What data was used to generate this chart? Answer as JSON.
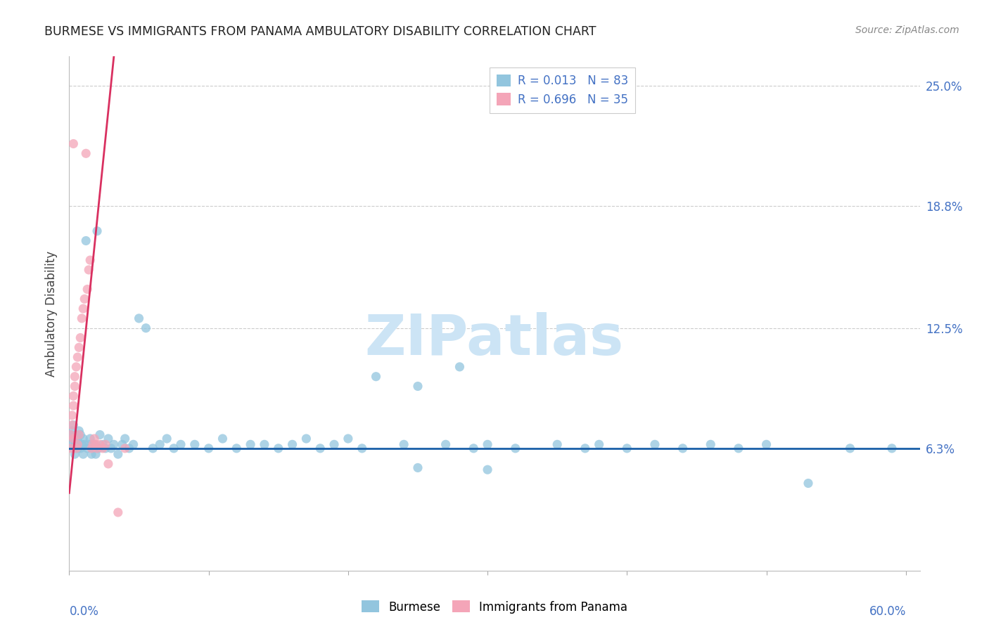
{
  "title": "BURMESE VS IMMIGRANTS FROM PANAMA AMBULATORY DISABILITY CORRELATION CHART",
  "source": "Source: ZipAtlas.com",
  "ylabel": "Ambulatory Disability",
  "ytick_vals": [
    0.063,
    0.125,
    0.188,
    0.25
  ],
  "ytick_labels": [
    "6.3%",
    "12.5%",
    "18.8%",
    "25.0%"
  ],
  "xlim": [
    0.0,
    0.61
  ],
  "ylim": [
    0.0,
    0.265
  ],
  "legend_line1": "R = 0.013   N = 83",
  "legend_line2": "R = 0.696   N = 35",
  "blue_color": "#92c5de",
  "pink_color": "#f4a5b8",
  "line_blue_color": "#1a5fa8",
  "line_pink_color": "#d93060",
  "watermark_color": "#cce4f5",
  "blue_x": [
    0.001,
    0.002,
    0.002,
    0.003,
    0.003,
    0.003,
    0.004,
    0.004,
    0.005,
    0.005,
    0.006,
    0.006,
    0.007,
    0.007,
    0.008,
    0.008,
    0.009,
    0.01,
    0.01,
    0.011,
    0.012,
    0.013,
    0.014,
    0.015,
    0.016,
    0.017,
    0.018,
    0.019,
    0.02,
    0.021,
    0.022,
    0.024,
    0.026,
    0.028,
    0.03,
    0.032,
    0.035,
    0.038,
    0.04,
    0.043,
    0.046,
    0.05,
    0.055,
    0.06,
    0.065,
    0.07,
    0.075,
    0.08,
    0.09,
    0.1,
    0.11,
    0.12,
    0.13,
    0.14,
    0.15,
    0.16,
    0.17,
    0.18,
    0.19,
    0.2,
    0.21,
    0.22,
    0.24,
    0.25,
    0.27,
    0.28,
    0.29,
    0.3,
    0.32,
    0.35,
    0.37,
    0.38,
    0.4,
    0.42,
    0.44,
    0.46,
    0.48,
    0.5,
    0.53,
    0.56,
    0.59,
    0.25,
    0.3
  ],
  "blue_y": [
    0.07,
    0.065,
    0.072,
    0.068,
    0.063,
    0.075,
    0.066,
    0.06,
    0.07,
    0.065,
    0.068,
    0.063,
    0.072,
    0.065,
    0.07,
    0.063,
    0.065,
    0.068,
    0.06,
    0.065,
    0.17,
    0.063,
    0.065,
    0.068,
    0.06,
    0.063,
    0.065,
    0.06,
    0.175,
    0.063,
    0.07,
    0.065,
    0.063,
    0.068,
    0.063,
    0.065,
    0.06,
    0.065,
    0.068,
    0.063,
    0.065,
    0.13,
    0.125,
    0.063,
    0.065,
    0.068,
    0.063,
    0.065,
    0.065,
    0.063,
    0.068,
    0.063,
    0.065,
    0.065,
    0.063,
    0.065,
    0.068,
    0.063,
    0.065,
    0.068,
    0.063,
    0.1,
    0.065,
    0.095,
    0.065,
    0.105,
    0.063,
    0.065,
    0.063,
    0.065,
    0.063,
    0.065,
    0.063,
    0.065,
    0.063,
    0.065,
    0.063,
    0.065,
    0.045,
    0.063,
    0.063,
    0.053,
    0.052
  ],
  "pink_x": [
    0.001,
    0.001,
    0.002,
    0.002,
    0.003,
    0.003,
    0.003,
    0.004,
    0.004,
    0.005,
    0.005,
    0.006,
    0.006,
    0.007,
    0.007,
    0.008,
    0.009,
    0.01,
    0.011,
    0.012,
    0.013,
    0.014,
    0.015,
    0.016,
    0.017,
    0.018,
    0.019,
    0.02,
    0.022,
    0.024,
    0.026,
    0.028,
    0.035,
    0.04,
    0.003
  ],
  "pink_y": [
    0.063,
    0.07,
    0.075,
    0.08,
    0.085,
    0.09,
    0.068,
    0.095,
    0.1,
    0.105,
    0.063,
    0.11,
    0.065,
    0.115,
    0.07,
    0.12,
    0.13,
    0.135,
    0.14,
    0.215,
    0.145,
    0.155,
    0.16,
    0.063,
    0.065,
    0.068,
    0.065,
    0.063,
    0.065,
    0.063,
    0.065,
    0.055,
    0.03,
    0.063,
    0.22
  ],
  "pink_line_x0": 0.0,
  "pink_line_y0": 0.04,
  "pink_line_x1": 0.032,
  "pink_line_y1": 0.265,
  "blue_line_x0": 0.0,
  "blue_line_x1": 0.61,
  "blue_line_y": 0.063
}
